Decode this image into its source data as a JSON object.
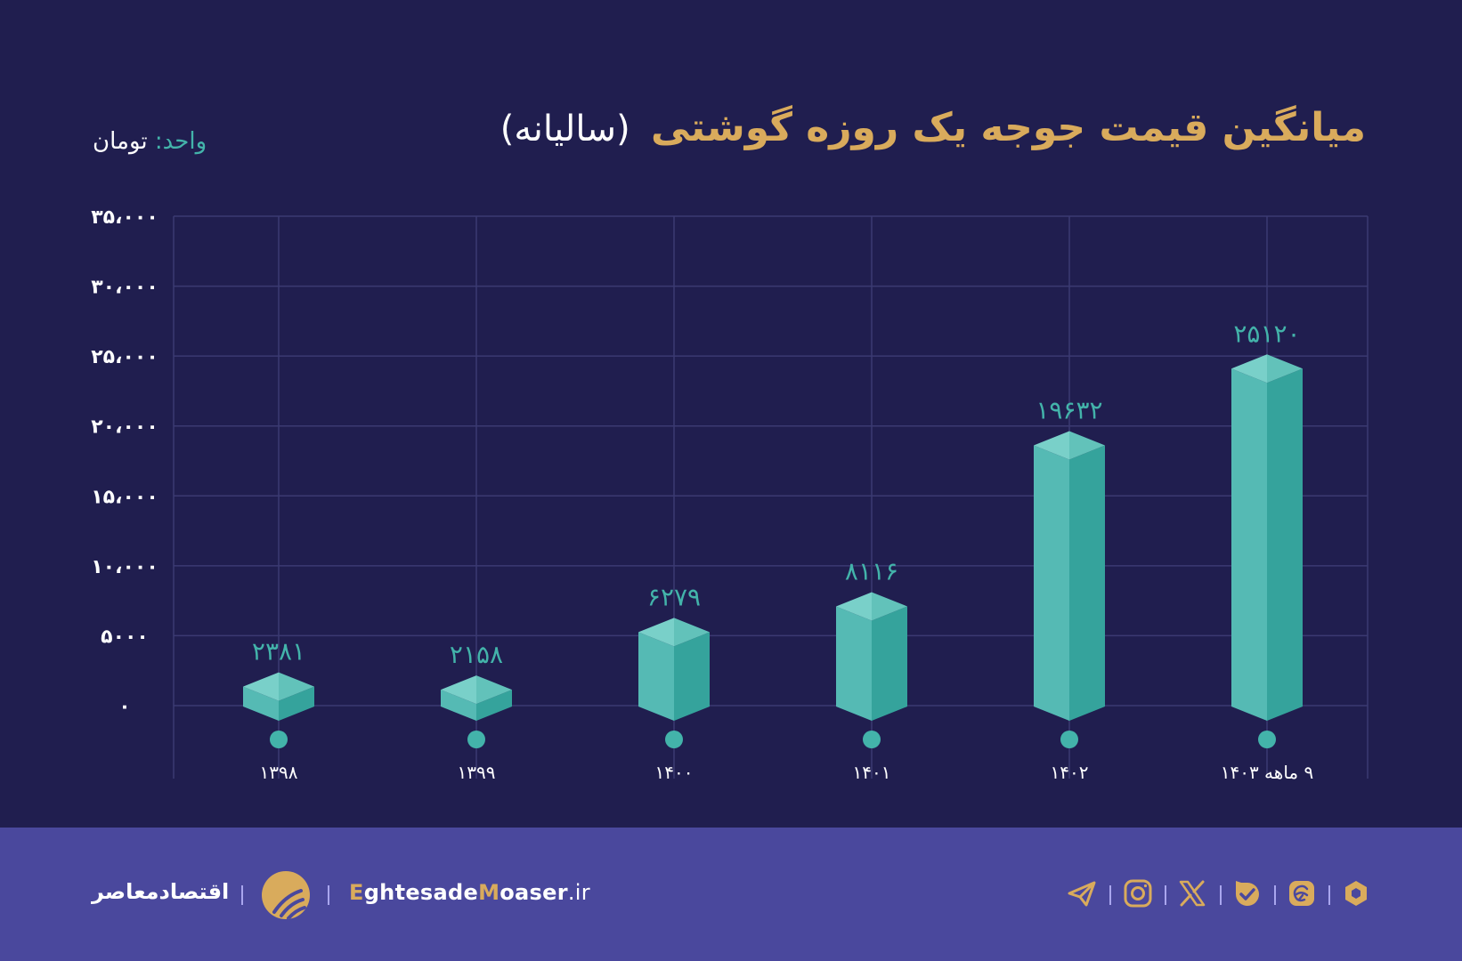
{
  "header": {
    "title_main": "میانگین قیمت جوجه یک روزه گوشتی",
    "title_sub": "(سالیانه)",
    "unit_label": "واحد:",
    "unit_value": "تومان"
  },
  "colors": {
    "background": "#201e4f",
    "title": "#d9ab5c",
    "accent": "#43b3aa",
    "bar_front_left": "#55bab4",
    "bar_front_right": "#35a39c",
    "bar_top_left": "#79d0c9",
    "bar_top_right": "#62c2ba",
    "grid": "#3b3a72",
    "footer": "#4a489d"
  },
  "chart_data": {
    "type": "bar",
    "title": "میانگین قیمت جوجه یک روزه گوشتی (سالیانه)",
    "unit": "تومان",
    "xlabel": "",
    "ylabel": "",
    "categories": [
      "۱۳۹۸",
      "۱۳۹۹",
      "۱۴۰۰",
      "۱۴۰۱",
      "۱۴۰۲",
      "۹ ماهه ۱۴۰۳"
    ],
    "values": [
      2381,
      2158,
      6279,
      8116,
      19632,
      25120
    ],
    "value_labels": [
      "۲۳۸۱",
      "۲۱۵۸",
      "۶۲۷۹",
      "۸۱۱۶",
      "۱۹۶۳۲",
      "۲۵۱۲۰"
    ],
    "ylim": [
      0,
      35000
    ],
    "yticks": [
      0,
      5000,
      10000,
      15000,
      20000,
      25000,
      30000,
      35000
    ],
    "ytick_labels": [
      "۰",
      "۵۰۰۰",
      "۱۰،۰۰۰",
      "۱۵،۰۰۰",
      "۲۰،۰۰۰",
      "۲۵،۰۰۰",
      "۳۰،۰۰۰",
      "۳۵،۰۰۰"
    ],
    "grid": true,
    "legend": null,
    "style": "3d isometric columns"
  },
  "footer": {
    "brand_fa": "اقتصادمعاصر",
    "site_parts": [
      "E",
      "ghtesade",
      "M",
      "oaser",
      ".ir"
    ],
    "social_icons": [
      "telegram-icon",
      "instagram-icon",
      "x-icon",
      "bale-icon",
      "eitaa-icon",
      "rubika-icon"
    ]
  }
}
